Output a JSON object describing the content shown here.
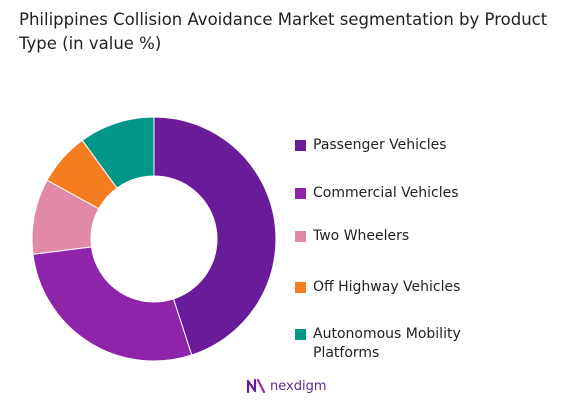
{
  "title": "Philippines Collision Avoidance Market segmentation by Product Type (in value %)",
  "chart_data": {
    "type": "pie",
    "style": "donut",
    "categories": [
      "Passenger Vehicles",
      "Commercial Vehicles",
      "Two Wheelers",
      "Off Highway Vehicles",
      "Autonomous Mobility Platforms"
    ],
    "values": [
      45,
      28,
      10,
      7,
      10
    ],
    "colors": [
      "#6a1b9a",
      "#8e24aa",
      "#e089a8",
      "#f57c1f",
      "#009688"
    ],
    "legend_position": "right"
  },
  "legend": [
    {
      "label": "Passenger Vehicles",
      "color": "#6a1b9a"
    },
    {
      "label": "Commercial Vehicles",
      "color": "#8e24aa"
    },
    {
      "label": "Two Wheelers",
      "color": "#e089a8"
    },
    {
      "label": "Off Highway Vehicles",
      "color": "#f57c1f"
    },
    {
      "label": "Autonomous Mobility Platforms",
      "color": "#009688"
    }
  ],
  "branding": {
    "logo_text": "nexdigm",
    "logo_color": "#5b2b8c"
  }
}
